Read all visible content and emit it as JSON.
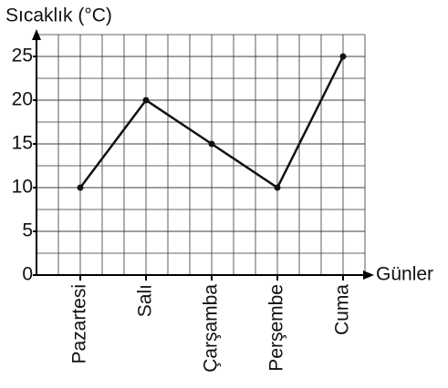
{
  "chart_data": {
    "type": "line",
    "title": "Sıcaklık (°C)",
    "x_label": "Günler",
    "categories": [
      "Pazartesi",
      "Salı",
      "Çarşamba",
      "Perşembe",
      "Cuma"
    ],
    "values": [
      10,
      20,
      15,
      10,
      25
    ],
    "color": "#111111",
    "ylim": [
      0,
      27.5
    ],
    "yticks": [
      0,
      5,
      10,
      15,
      20,
      25
    ],
    "grid": true
  }
}
